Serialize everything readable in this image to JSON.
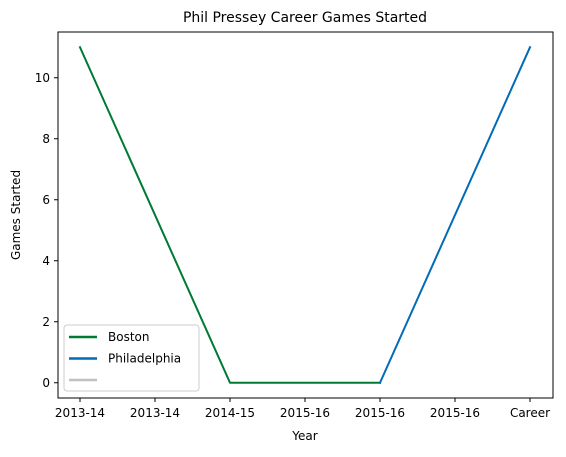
{
  "chart_data": {
    "type": "line",
    "title": "Phil Pressey Career Games Started",
    "xlabel": "Year",
    "ylabel": "Games Started",
    "categories": [
      "2013-14",
      "2013-14",
      "2014-15",
      "2015-16",
      "2015-16",
      "2015-16",
      "Career"
    ],
    "ylim": [
      -0.5,
      11.5
    ],
    "yticks": [
      0,
      2,
      4,
      6,
      8,
      10
    ],
    "grid": false,
    "legend_position": "lower-left",
    "series": [
      {
        "name": "Boston",
        "color": "#007a33",
        "points": [
          {
            "x_index": 0,
            "y": 11
          },
          {
            "x_index": 2,
            "y": 0
          },
          {
            "x_index": 4,
            "y": 0
          }
        ]
      },
      {
        "name": "Philadelphia",
        "color": "#006bb6",
        "points": [
          {
            "x_index": 4,
            "y": 0
          },
          {
            "x_index": 6,
            "y": 11
          }
        ]
      },
      {
        "name": "",
        "color": "#c0c0c0",
        "points": []
      }
    ]
  }
}
